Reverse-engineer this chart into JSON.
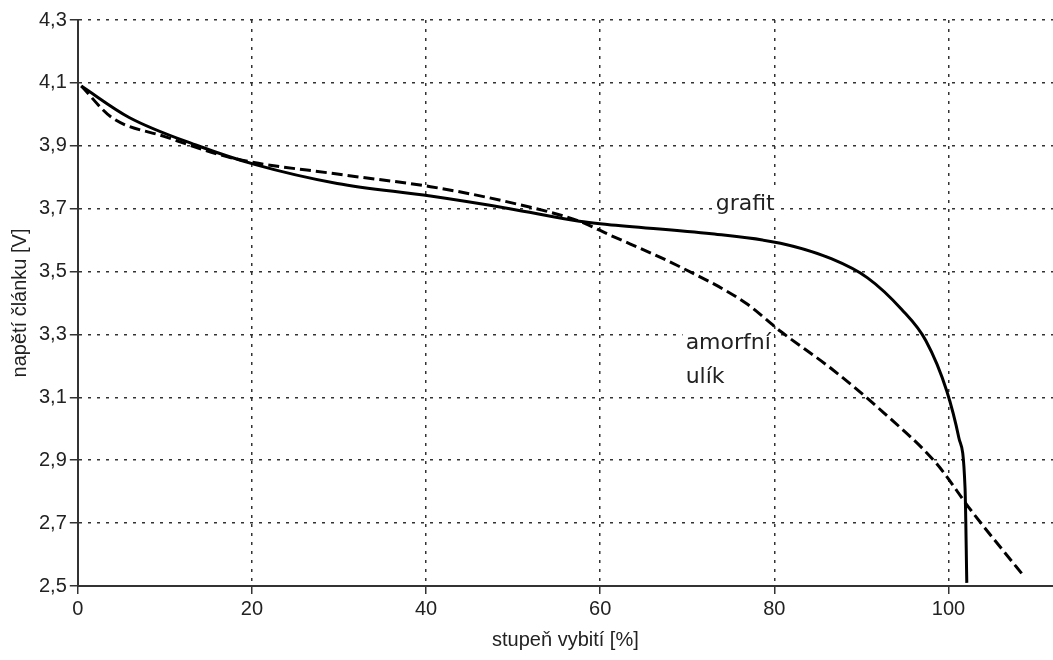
{
  "chart_data": {
    "type": "line",
    "xlabel": "stupeň vybití [%]",
    "ylabel": "napětí článku [V]",
    "xlim": [
      0,
      112
    ],
    "xticks": [
      0,
      20,
      40,
      60,
      80,
      100
    ],
    "ylim": [
      2.5,
      4.3
    ],
    "yticks": [
      {
        "value": 2.5,
        "label": "2,5"
      },
      {
        "value": 2.7,
        "label": "2,7"
      },
      {
        "value": 2.9,
        "label": "2,9"
      },
      {
        "value": 3.1,
        "label": "3,1"
      },
      {
        "value": 3.3,
        "label": "3,3"
      },
      {
        "value": 3.5,
        "label": "3,5"
      },
      {
        "value": 3.7,
        "label": "3,7"
      },
      {
        "value": 3.9,
        "label": "3,9"
      },
      {
        "value": 4.1,
        "label": "4,1"
      },
      {
        "value": 4.3,
        "label": "4,3"
      }
    ],
    "grid": true,
    "legend": false,
    "marker": "none",
    "series": [
      {
        "name": "grafit",
        "color": "#000000",
        "line_style": "solid",
        "x": [
          0.4,
          5.9,
          13.8,
          20.4,
          29.8,
          40.5,
          49.6,
          57.6,
          60.8,
          72.8,
          80.7,
          86.6,
          90.7,
          94.6,
          97.4,
          99.8,
          101.2,
          101.9,
          102.1
        ],
        "values": [
          4.09,
          3.99,
          3.9,
          3.84,
          3.78,
          3.74,
          3.7,
          3.66,
          3.65,
          3.62,
          3.59,
          3.54,
          3.48,
          3.38,
          3.28,
          3.12,
          2.97,
          2.81,
          2.51
        ]
      },
      {
        "name": "amorfní\nulík",
        "color": "#000000",
        "line_style": "dashed",
        "x": [
          0.4,
          3.9,
          9.9,
          17.9,
          29.8,
          40.5,
          49.6,
          57.6,
          60.8,
          68.8,
          76.7,
          80.7,
          86.6,
          92.6,
          98.6,
          102.6,
          108.4
        ],
        "values": [
          4.09,
          3.99,
          3.93,
          3.86,
          3.81,
          3.77,
          3.72,
          3.66,
          3.62,
          3.52,
          3.4,
          3.31,
          3.19,
          3.05,
          2.89,
          2.74,
          2.54
        ]
      }
    ]
  }
}
